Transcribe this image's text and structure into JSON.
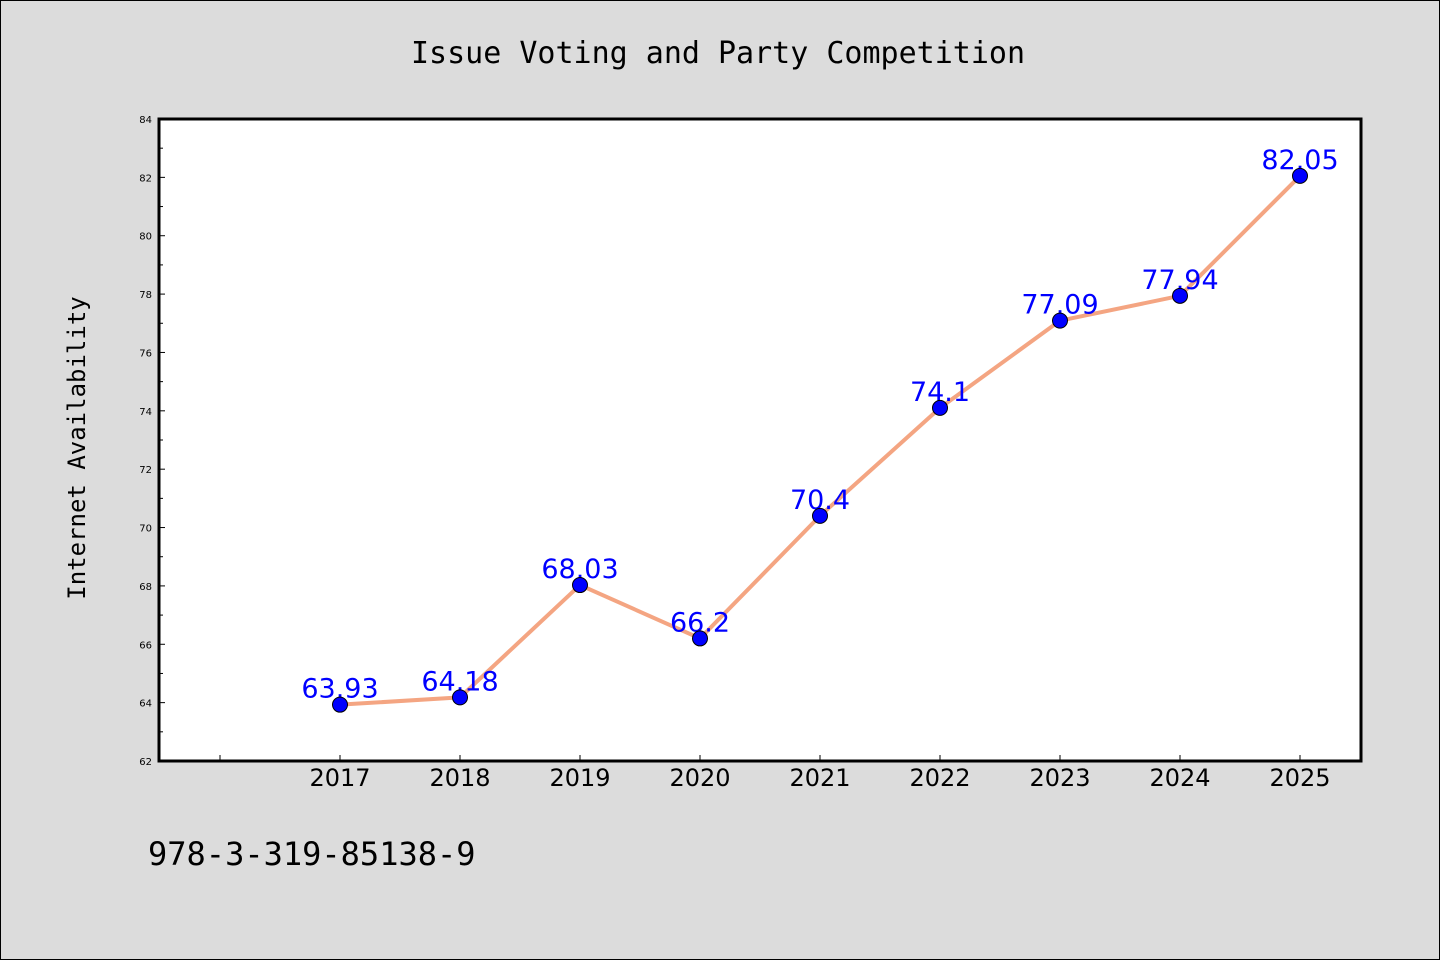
{
  "footnote": "978-3-319-85138-9",
  "colors": {
    "background": "#dcdcdc",
    "plot_background": "#ffffff",
    "line": "#f4a582",
    "marker": "#0000ff",
    "data_label": "#0000ff"
  },
  "chart_data": {
    "type": "line",
    "title": "Issue Voting and Party Competition",
    "xlabel": "",
    "ylabel": "Internet Availability",
    "categories": [
      "2017",
      "2018",
      "2019",
      "2020",
      "2021",
      "2022",
      "2023",
      "2024",
      "2025"
    ],
    "series": [
      {
        "values": [
          63.93,
          64.18,
          68.03,
          66.2,
          70.4,
          74.1,
          77.09,
          77.94,
          82.05
        ],
        "labels": [
          "63.93",
          "64.18",
          "68.03",
          "66.2",
          "70.4",
          "74.1",
          "77.09",
          "77.94",
          "82.05"
        ]
      }
    ],
    "ylim": [
      62,
      84
    ],
    "yticks": [
      62,
      64,
      66,
      68,
      70,
      72,
      74,
      76,
      78,
      80,
      82,
      84
    ],
    "grid": false,
    "legend": "none"
  }
}
